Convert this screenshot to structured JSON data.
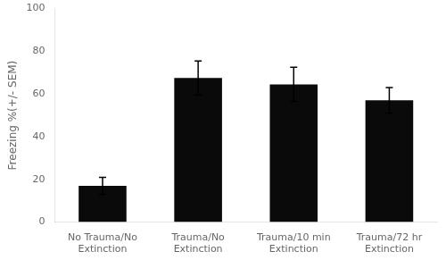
{
  "chart_data": {
    "type": "bar",
    "categories": [
      "No Trauma/No\nExtinction",
      "Trauma/No\nExtinction",
      "Trauma/10 min\nExtinction",
      "Trauma/72 hr\nExtinction"
    ],
    "values": [
      17.0,
      67.5,
      64.5,
      57.0
    ],
    "errors": [
      4.0,
      8.0,
      8.0,
      6.0
    ],
    "color": "#0a0a0a",
    "ylabel": "Freezing %(+/- SEM)",
    "ylim": [
      0,
      100
    ],
    "yticks": [
      0,
      20,
      40,
      60,
      80,
      100
    ],
    "grid": false
  }
}
